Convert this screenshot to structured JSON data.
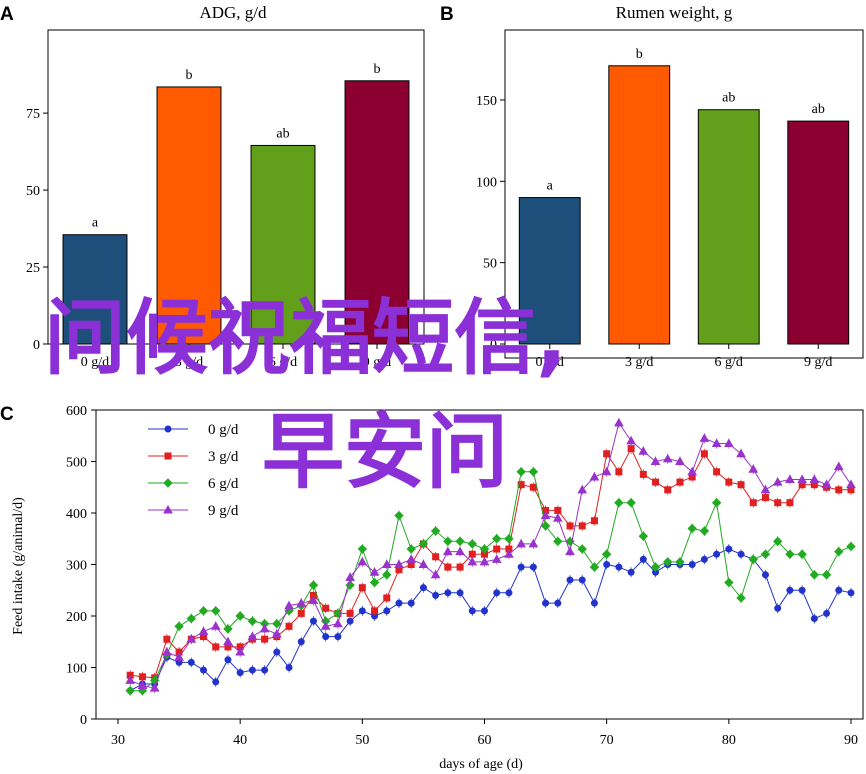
{
  "panels": {
    "A": {
      "letter": "A"
    },
    "B": {
      "letter": "B"
    },
    "C": {
      "letter": "C"
    }
  },
  "watermark": {
    "line1": "问候祝福短信,",
    "line2": "早安问",
    "color": "#8b2fd6"
  },
  "chart_data": [
    {
      "type": "bar",
      "title": "ADG, g/d",
      "categories": [
        "0 g/d",
        "3 g/d",
        "6 g/d",
        "9 g/d"
      ],
      "values": [
        35.5,
        83.5,
        64.5,
        85.5
      ],
      "labels": [
        "a",
        "b",
        "ab",
        "b"
      ],
      "colors": [
        "#1d4f7a",
        "#ff5a00",
        "#62a01b",
        "#8b0030"
      ],
      "ylim": [
        0,
        102
      ],
      "yticks": [
        0,
        25,
        50,
        75
      ]
    },
    {
      "type": "bar",
      "title": "Rumen weight, g",
      "categories": [
        "0 g/d",
        "3 g/d",
        "6 g/d",
        "9 g/d"
      ],
      "values": [
        90,
        171,
        144,
        137
      ],
      "labels": [
        "a",
        "b",
        "ab",
        "ab"
      ],
      "colors": [
        "#1d4f7a",
        "#ff5a00",
        "#62a01b",
        "#8b0030"
      ],
      "ylim": [
        0,
        193
      ],
      "yticks": [
        0,
        50,
        100,
        150
      ]
    },
    {
      "type": "line",
      "xlabel": "days of age (d)",
      "ylabel": "Feed intake (g/animal/d)",
      "xlim": [
        30,
        90
      ],
      "ylim": [
        0,
        600
      ],
      "xticks": [
        30,
        40,
        50,
        60,
        70,
        80,
        90
      ],
      "yticks": [
        0,
        100,
        200,
        300,
        400,
        500,
        600
      ],
      "legend_position": "top-left",
      "x": [
        31,
        32,
        33,
        34,
        35,
        36,
        37,
        38,
        39,
        40,
        41,
        42,
        43,
        44,
        45,
        46,
        47,
        48,
        49,
        50,
        51,
        52,
        53,
        54,
        55,
        56,
        57,
        58,
        59,
        60,
        61,
        62,
        63,
        64,
        65,
        66,
        67,
        68,
        69,
        70,
        71,
        72,
        73,
        74,
        75,
        76,
        77,
        78,
        79,
        80,
        81,
        82,
        83,
        84,
        85,
        86,
        87,
        88,
        89,
        90
      ],
      "series": [
        {
          "name": "0 g/d",
          "color": "#2233cc",
          "marker": "circle",
          "values": [
            55,
            68,
            68,
            120,
            110,
            110,
            95,
            72,
            115,
            90,
            95,
            95,
            130,
            100,
            150,
            190,
            160,
            160,
            190,
            210,
            200,
            210,
            225,
            225,
            255,
            240,
            245,
            245,
            210,
            210,
            245,
            245,
            295,
            295,
            225,
            225,
            270,
            270,
            225,
            300,
            295,
            285,
            310,
            285,
            300,
            300,
            300,
            310,
            320,
            330,
            320,
            310,
            280,
            215,
            250,
            250,
            195,
            205,
            250,
            245
          ]
        },
        {
          "name": "3 g/d",
          "color": "#e02020",
          "marker": "square",
          "values": [
            85,
            82,
            80,
            155,
            130,
            155,
            160,
            140,
            140,
            140,
            155,
            155,
            160,
            180,
            205,
            240,
            215,
            205,
            205,
            255,
            210,
            235,
            290,
            300,
            340,
            315,
            295,
            295,
            320,
            320,
            330,
            330,
            455,
            450,
            405,
            405,
            375,
            375,
            385,
            515,
            480,
            525,
            475,
            460,
            445,
            460,
            470,
            515,
            480,
            460,
            455,
            420,
            430,
            420,
            420,
            455,
            455,
            450,
            445,
            445
          ]
        },
        {
          "name": "6 g/d",
          "color": "#22aa22",
          "marker": "diamond",
          "values": [
            55,
            55,
            75,
            125,
            180,
            195,
            210,
            210,
            175,
            200,
            190,
            185,
            185,
            210,
            220,
            260,
            190,
            205,
            260,
            330,
            265,
            280,
            395,
            330,
            340,
            365,
            345,
            345,
            340,
            330,
            350,
            350,
            480,
            480,
            375,
            345,
            345,
            330,
            295,
            320,
            420,
            420,
            355,
            295,
            305,
            305,
            370,
            365,
            420,
            265,
            235,
            310,
            320,
            345,
            320,
            320,
            280,
            280,
            325,
            335
          ]
        },
        {
          "name": "9 g/d",
          "color": "#9933cc",
          "marker": "triangle",
          "values": [
            75,
            65,
            60,
            130,
            120,
            155,
            170,
            180,
            150,
            130,
            160,
            175,
            165,
            220,
            225,
            230,
            180,
            185,
            275,
            305,
            285,
            300,
            300,
            310,
            300,
            280,
            325,
            325,
            305,
            305,
            310,
            320,
            340,
            340,
            395,
            390,
            325,
            445,
            470,
            480,
            575,
            540,
            520,
            500,
            505,
            500,
            480,
            545,
            535,
            535,
            515,
            485,
            445,
            460,
            465,
            465,
            465,
            455,
            490,
            455
          ]
        }
      ]
    }
  ]
}
